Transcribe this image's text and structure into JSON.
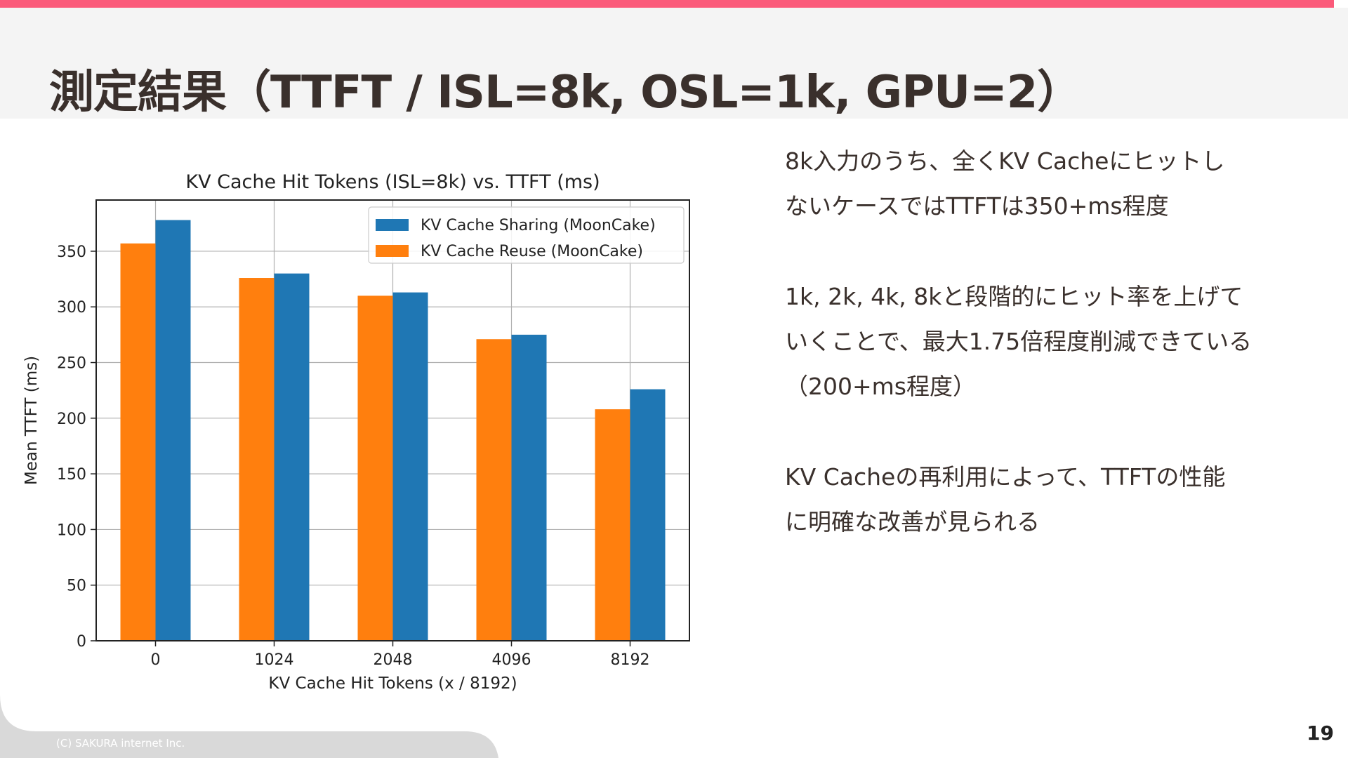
{
  "colors": {
    "accent": "#fb5a7a",
    "reuse": "#ff7f0e",
    "sharing": "#1f77b4",
    "footer": "#d9d9d9"
  },
  "slide": {
    "title": "測定結果（TTFT / ISL=8k, OSL=1k, GPU=2）",
    "paragraphs": [
      "8k入力のうち、全くKV Cacheにヒットし\nないケースではTTFTは350+ms程度",
      "1k, 2k, 4k, 8kと段階的にヒット率を上げて\nいくことで、最大1.75倍程度削減できている\n（200+ms程度）",
      "KV Cacheの再利用によって、TTFTの性能\nに明確な改善が見られる"
    ],
    "copyright": "(C) SAKURA internet Inc.",
    "page_number": "19"
  },
  "chart_data": {
    "type": "bar",
    "title": "KV Cache Hit Tokens (ISL=8k) vs. TTFT (ms)",
    "xlabel": "KV Cache Hit Tokens (x / 8192)",
    "ylabel": "Mean TTFT (ms)",
    "categories": [
      "0",
      "1024",
      "2048",
      "4096",
      "8192"
    ],
    "series": [
      {
        "name": "KV Cache Reuse (MoonCake)",
        "color": "#ff7f0e",
        "values": [
          357,
          326,
          310,
          271,
          208
        ]
      },
      {
        "name": "KV Cache Sharing (MoonCake)",
        "color": "#1f77b4",
        "values": [
          378,
          330,
          313,
          275,
          226
        ]
      }
    ],
    "legend_order": [
      1,
      0
    ],
    "legend_position": "upper right",
    "ylim": [
      0,
      396
    ],
    "yticks": [
      0,
      50,
      100,
      150,
      200,
      250,
      300,
      350
    ],
    "grid": true
  }
}
